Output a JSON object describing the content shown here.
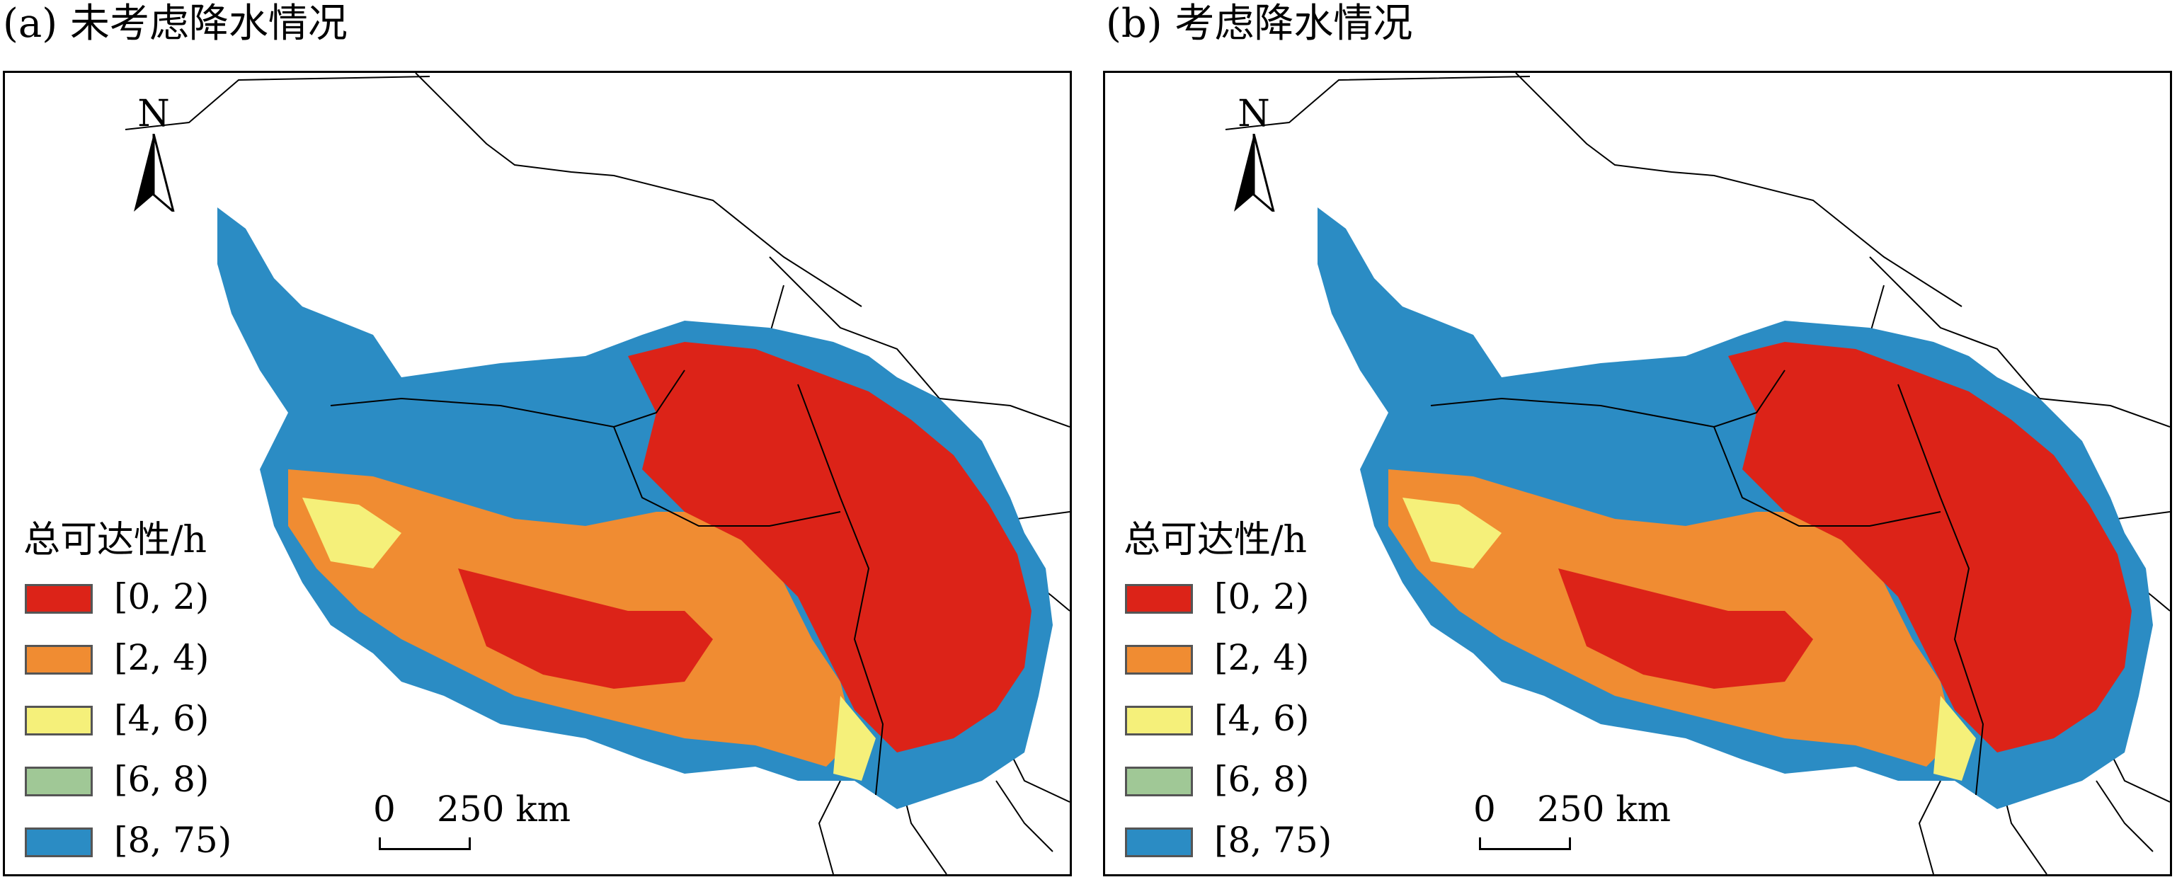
{
  "panels": [
    {
      "title": "(a) 未考虑降水情况",
      "north": "N",
      "legend_title": "总可达性/h",
      "scale_zero": "0",
      "scale_label": "250 km"
    },
    {
      "title": "(b) 考虑降水情况",
      "north": "N",
      "legend_title": "总可达性/h",
      "scale_zero": "0",
      "scale_label": "250 km"
    }
  ],
  "legend": [
    {
      "label": "[0, 2)",
      "color": "#dc2318"
    },
    {
      "label": "[2, 4)",
      "color": "#f08c32"
    },
    {
      "label": "[4, 6)",
      "color": "#f5f07a"
    },
    {
      "label": "[6, 8)",
      "color": "#a0c896"
    },
    {
      "label": "[8, 75)",
      "color": "#2b8cc4"
    }
  ],
  "icons": {
    "north_arrow": "north-arrow-icon"
  }
}
